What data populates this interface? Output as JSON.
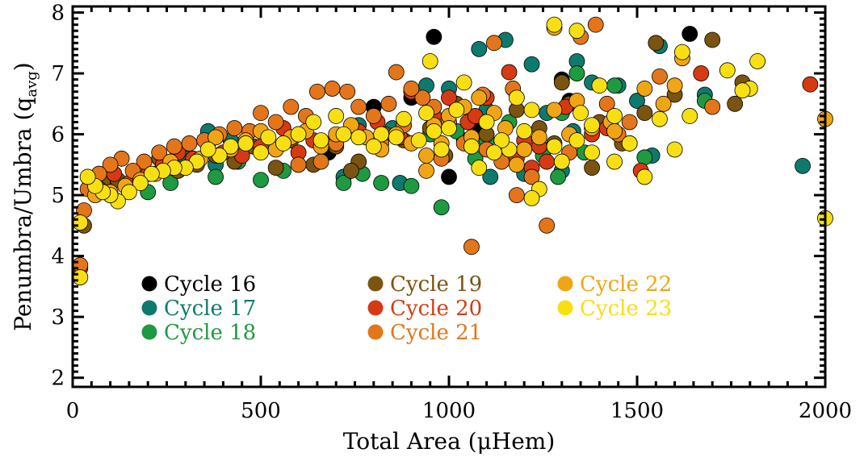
{
  "chart_data": {
    "type": "scatter",
    "xlabel": "Total Area (μHem)",
    "ylabel_main": "Penumbra/Umbra (q",
    "ylabel_sub": "avg",
    "ylabel_close": ")",
    "xlim": [
      0,
      2000
    ],
    "ylim": [
      1.85,
      8.1
    ],
    "x_ticks": [
      0,
      500,
      1000,
      1500,
      2000
    ],
    "y_ticks": [
      2,
      3,
      4,
      5,
      6,
      7,
      8
    ],
    "grid": false,
    "legend_position": "lower-left (inside, 3 columns)",
    "series": [
      {
        "name": "Cycle 16",
        "color": "#000000",
        "points": [
          [
            960,
            7.6
          ],
          [
            1640,
            7.65
          ],
          [
            800,
            6.45
          ],
          [
            1320,
            6.55
          ],
          [
            1300,
            6.9
          ],
          [
            1000,
            5.3
          ],
          [
            680,
            5.7
          ],
          [
            1040,
            5.9
          ],
          [
            900,
            6.6
          ],
          [
            1080,
            6.15
          ]
        ]
      },
      {
        "name": "Cycle 17",
        "color": "#0e7a6e",
        "points": [
          [
            1080,
            7.4
          ],
          [
            1150,
            7.55
          ],
          [
            1340,
            7.2
          ],
          [
            1560,
            7.45
          ],
          [
            1220,
            7.15
          ],
          [
            1000,
            6.75
          ],
          [
            940,
            6.8
          ],
          [
            1380,
            6.85
          ],
          [
            1450,
            6.8
          ],
          [
            1680,
            6.65
          ],
          [
            1100,
            6.4
          ],
          [
            850,
            6.1
          ],
          [
            760,
            6.15
          ],
          [
            600,
            6.0
          ],
          [
            420,
            5.9
          ],
          [
            380,
            5.5
          ],
          [
            300,
            5.6
          ],
          [
            1540,
            5.65
          ],
          [
            1300,
            5.4
          ],
          [
            1110,
            5.3
          ],
          [
            1200,
            5.35
          ],
          [
            1940,
            5.48
          ],
          [
            870,
            5.2
          ],
          [
            720,
            5.3
          ],
          [
            360,
            6.05
          ],
          [
            1260,
            6.35
          ],
          [
            1500,
            6.55
          ],
          [
            1330,
            6.05
          ]
        ]
      },
      {
        "name": "Cycle 18",
        "color": "#1e9a40",
        "points": [
          [
            980,
            4.8
          ],
          [
            820,
            5.2
          ],
          [
            900,
            5.15
          ],
          [
            500,
            5.25
          ],
          [
            720,
            5.2
          ],
          [
            380,
            5.3
          ],
          [
            280,
            5.4
          ],
          [
            200,
            5.05
          ],
          [
            260,
            5.2
          ],
          [
            1070,
            5.6
          ],
          [
            1520,
            5.62
          ],
          [
            1480,
            5.85
          ],
          [
            1360,
            5.7
          ],
          [
            1290,
            5.3
          ],
          [
            1680,
            6.55
          ],
          [
            1440,
            6.8
          ],
          [
            1340,
            7.0
          ],
          [
            950,
            6.0
          ],
          [
            1100,
            5.9
          ],
          [
            1250,
            5.65
          ],
          [
            600,
            5.5
          ],
          [
            560,
            5.4
          ],
          [
            770,
            5.35
          ],
          [
            440,
            5.55
          ],
          [
            1020,
            6.05
          ],
          [
            1160,
            6.2
          ],
          [
            1300,
            6.35
          ]
        ]
      },
      {
        "name": "Cycle 19",
        "color": "#7a5410",
        "points": [
          [
            1700,
            7.55
          ],
          [
            1550,
            7.5
          ],
          [
            1760,
            6.5
          ],
          [
            1780,
            6.85
          ],
          [
            1600,
            6.65
          ],
          [
            1520,
            6.35
          ],
          [
            1460,
            5.85
          ],
          [
            1380,
            5.45
          ],
          [
            1300,
            6.85
          ],
          [
            1240,
            6.1
          ],
          [
            1180,
            6.4
          ],
          [
            1100,
            6.0
          ],
          [
            1060,
            5.8
          ],
          [
            1020,
            6.5
          ],
          [
            950,
            6.1
          ],
          [
            880,
            5.9
          ],
          [
            830,
            6.0
          ],
          [
            760,
            5.55
          ],
          [
            700,
            5.8
          ],
          [
            640,
            5.5
          ],
          [
            580,
            5.9
          ],
          [
            540,
            5.45
          ],
          [
            480,
            5.8
          ],
          [
            430,
            5.55
          ],
          [
            380,
            5.65
          ],
          [
            330,
            5.5
          ],
          [
            280,
            5.4
          ],
          [
            230,
            5.6
          ],
          [
            170,
            5.3
          ],
          [
            120,
            5.25
          ],
          [
            80,
            5.2
          ],
          [
            30,
            4.5
          ],
          [
            1400,
            6.2
          ],
          [
            1320,
            6.5
          ],
          [
            1140,
            5.75
          ],
          [
            990,
            5.65
          ],
          [
            740,
            5.4
          ],
          [
            1280,
            5.85
          ]
        ]
      },
      {
        "name": "Cycle 20",
        "color": "#d63a12",
        "points": [
          [
            1960,
            6.82
          ],
          [
            1670,
            7.0
          ],
          [
            1160,
            7.02
          ],
          [
            1310,
            6.45
          ],
          [
            1100,
            6.6
          ],
          [
            1050,
            6.2
          ],
          [
            1000,
            6.6
          ],
          [
            960,
            6.3
          ],
          [
            900,
            6.7
          ],
          [
            870,
            5.95
          ],
          [
            810,
            6.2
          ],
          [
            760,
            6.05
          ],
          [
            700,
            5.95
          ],
          [
            640,
            5.9
          ],
          [
            600,
            5.7
          ],
          [
            560,
            6.1
          ],
          [
            500,
            5.8
          ],
          [
            450,
            5.65
          ],
          [
            400,
            5.7
          ],
          [
            360,
            5.85
          ],
          [
            320,
            5.6
          ],
          [
            280,
            5.7
          ],
          [
            240,
            5.5
          ],
          [
            200,
            5.35
          ],
          [
            150,
            5.2
          ],
          [
            110,
            5.35
          ],
          [
            70,
            5.1
          ],
          [
            20,
            3.8
          ],
          [
            1510,
            5.4
          ],
          [
            1420,
            6.1
          ],
          [
            1380,
            6.0
          ],
          [
            1240,
            5.8
          ],
          [
            1220,
            5.45
          ],
          [
            1180,
            5.6
          ],
          [
            1070,
            6.3
          ],
          [
            1140,
            5.7
          ],
          [
            1200,
            5.9
          ],
          [
            1260,
            5.55
          ]
        ]
      },
      {
        "name": "Cycle 21",
        "color": "#e3761a",
        "points": [
          [
            1390,
            7.8
          ],
          [
            1350,
            7.6
          ],
          [
            1120,
            7.5
          ],
          [
            860,
            7.02
          ],
          [
            1560,
            6.95
          ],
          [
            1170,
            6.75
          ],
          [
            1420,
            6.5
          ],
          [
            960,
            6.45
          ],
          [
            930,
            6.6
          ],
          [
            900,
            6.75
          ],
          [
            840,
            6.5
          ],
          [
            800,
            6.3
          ],
          [
            760,
            6.45
          ],
          [
            730,
            6.7
          ],
          [
            690,
            6.75
          ],
          [
            650,
            6.7
          ],
          [
            620,
            6.3
          ],
          [
            580,
            6.45
          ],
          [
            540,
            6.2
          ],
          [
            500,
            6.35
          ],
          [
            470,
            6.05
          ],
          [
            430,
            6.1
          ],
          [
            390,
            6.0
          ],
          [
            350,
            5.9
          ],
          [
            310,
            5.85
          ],
          [
            270,
            5.8
          ],
          [
            230,
            5.7
          ],
          [
            190,
            5.55
          ],
          [
            160,
            5.4
          ],
          [
            130,
            5.6
          ],
          [
            100,
            5.5
          ],
          [
            70,
            5.35
          ],
          [
            40,
            5.1
          ],
          [
            20,
            3.85
          ],
          [
            30,
            4.75
          ],
          [
            1220,
            5.3
          ],
          [
            1180,
            5.0
          ],
          [
            1140,
            5.55
          ],
          [
            1320,
            5.7
          ],
          [
            1260,
            4.5
          ],
          [
            1060,
            4.15
          ],
          [
            1700,
            6.45
          ],
          [
            1480,
            6.2
          ],
          [
            1450,
            6.0
          ],
          [
            1090,
            6.65
          ],
          [
            1000,
            6.2
          ],
          [
            1040,
            5.85
          ],
          [
            1100,
            5.75
          ],
          [
            980,
            5.6
          ],
          [
            660,
            5.55
          ],
          [
            600,
            5.5
          ],
          [
            700,
            5.85
          ],
          [
            820,
            5.85
          ],
          [
            880,
            6.15
          ]
        ]
      },
      {
        "name": "Cycle 22",
        "color": "#efa515",
        "points": [
          [
            1280,
            7.75
          ],
          [
            1620,
            7.25
          ],
          [
            1520,
            6.75
          ],
          [
            1340,
            6.55
          ],
          [
            1280,
            6.4
          ],
          [
            1430,
            6.2
          ],
          [
            1380,
            6.1
          ],
          [
            1320,
            6.0
          ],
          [
            1240,
            5.95
          ],
          [
            1200,
            5.75
          ],
          [
            1180,
            5.5
          ],
          [
            1150,
            6.1
          ],
          [
            1120,
            6.35
          ],
          [
            1080,
            6.6
          ],
          [
            1060,
            5.95
          ],
          [
            1000,
            6.3
          ],
          [
            980,
            5.85
          ],
          [
            940,
            5.65
          ],
          [
            940,
            5.4
          ],
          [
            900,
            5.85
          ],
          [
            860,
            6.0
          ],
          [
            820,
            5.75
          ],
          [
            780,
            5.95
          ],
          [
            740,
            6.15
          ],
          [
            700,
            6.0
          ],
          [
            660,
            5.8
          ],
          [
            620,
            6.05
          ],
          [
            580,
            5.95
          ],
          [
            540,
            5.75
          ],
          [
            500,
            6.05
          ],
          [
            460,
            5.9
          ],
          [
            420,
            5.75
          ],
          [
            380,
            5.95
          ],
          [
            340,
            5.6
          ],
          [
            300,
            5.45
          ],
          [
            260,
            5.55
          ],
          [
            220,
            5.35
          ],
          [
            180,
            5.25
          ],
          [
            140,
            5.15
          ],
          [
            100,
            5.05
          ],
          [
            60,
            5.0
          ],
          [
            2000,
            6.25
          ],
          [
            1570,
            6.5
          ],
          [
            1600,
            6.8
          ],
          [
            1440,
            6.05
          ],
          [
            1040,
            6.45
          ],
          [
            960,
            6.15
          ]
        ]
      },
      {
        "name": "Cycle 23",
        "color": "#f7df14",
        "points": [
          [
            1280,
            7.8
          ],
          [
            1340,
            7.7
          ],
          [
            950,
            7.2
          ],
          [
            1820,
            7.2
          ],
          [
            1740,
            7.05
          ],
          [
            1620,
            7.35
          ],
          [
            1040,
            6.85
          ],
          [
            1800,
            6.75
          ],
          [
            1780,
            6.72
          ],
          [
            1400,
            6.8
          ],
          [
            1640,
            6.3
          ],
          [
            1600,
            5.75
          ],
          [
            1520,
            5.3
          ],
          [
            1440,
            6.3
          ],
          [
            1380,
            6.15
          ],
          [
            1340,
            5.9
          ],
          [
            1280,
            5.8
          ],
          [
            1220,
            6.4
          ],
          [
            1200,
            6.05
          ],
          [
            1160,
            5.75
          ],
          [
            1140,
            5.9
          ],
          [
            1120,
            5.7
          ],
          [
            1100,
            6.2
          ],
          [
            1080,
            5.45
          ],
          [
            1060,
            5.8
          ],
          [
            1020,
            6.4
          ],
          [
            1000,
            6.1
          ],
          [
            980,
            5.75
          ],
          [
            960,
            6.05
          ],
          [
            940,
            6.35
          ],
          [
            920,
            5.9
          ],
          [
            880,
            6.25
          ],
          [
            860,
            5.95
          ],
          [
            820,
            6.0
          ],
          [
            800,
            5.8
          ],
          [
            760,
            5.95
          ],
          [
            720,
            6.0
          ],
          [
            700,
            6.3
          ],
          [
            660,
            5.9
          ],
          [
            640,
            6.2
          ],
          [
            600,
            6.0
          ],
          [
            560,
            5.85
          ],
          [
            520,
            5.95
          ],
          [
            500,
            5.7
          ],
          [
            460,
            5.85
          ],
          [
            420,
            5.8
          ],
          [
            390,
            5.65
          ],
          [
            360,
            5.75
          ],
          [
            330,
            5.55
          ],
          [
            300,
            5.45
          ],
          [
            270,
            5.45
          ],
          [
            240,
            5.4
          ],
          [
            210,
            5.35
          ],
          [
            180,
            5.2
          ],
          [
            150,
            5.05
          ],
          [
            120,
            4.9
          ],
          [
            100,
            5.0
          ],
          [
            80,
            5.05
          ],
          [
            60,
            5.15
          ],
          [
            40,
            5.3
          ],
          [
            20,
            3.65
          ],
          [
            20,
            4.55
          ],
          [
            2000,
            4.62
          ],
          [
            1380,
            5.7
          ],
          [
            1240,
            5.1
          ],
          [
            1220,
            4.95
          ],
          [
            1300,
            5.55
          ],
          [
            1440,
            5.55
          ],
          [
            1480,
            5.85
          ],
          [
            1560,
            6.25
          ],
          [
            1350,
            6.35
          ],
          [
            1180,
            6.6
          ]
        ]
      }
    ]
  }
}
